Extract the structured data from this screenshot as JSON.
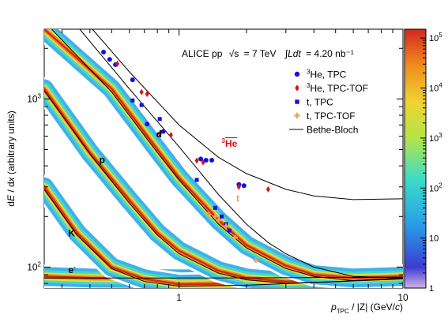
{
  "chart_data": {
    "type": "heatmap",
    "x_scale": "log",
    "y_scale": "log",
    "xlim": [
      0.25,
      10
    ],
    "ylim": [
      75,
      2600
    ],
    "zlim": [
      1,
      150000
    ],
    "title": "ALICE pp √s = 7 TeV ∫Ldt = 4.20 nb⁻¹",
    "title_parts": {
      "experiment": "ALICE pp",
      "energy_symbol": "√s",
      "energy_value": "= 7 TeV",
      "lumi_symbol": "∫Ldt",
      "lumi_value": "= 4.20 nb⁻¹"
    },
    "xlabel": "p_TPC / |Z| (GeV/c)",
    "xlabel_parts": {
      "p": "p",
      "sub": "TPC",
      "rest": " / |Z| (GeV/",
      "c": "c",
      "close": ")"
    },
    "ylabel": "dE / dx (arbitrary units)",
    "ylabel_parts": {
      "a": "d",
      "b": "E",
      "c": " / d",
      "d": "x",
      "e": " (arbitrary units)"
    },
    "x_ticks": [
      {
        "value": 1,
        "label": "1"
      },
      {
        "value": 10,
        "label": "10"
      }
    ],
    "y_ticks": [
      {
        "value": 100,
        "label": "10",
        "exp": "2"
      },
      {
        "value": 1000,
        "label": "10",
        "exp": "3"
      }
    ],
    "z_ticks": [
      {
        "value": 1,
        "label": "1"
      },
      {
        "value": 10,
        "label": "10"
      },
      {
        "value": 100,
        "label": "10",
        "exp": "2"
      },
      {
        "value": 1000,
        "label": "10",
        "exp": "3"
      },
      {
        "value": 10000,
        "label": "10",
        "exp": "4"
      },
      {
        "value": 100000,
        "label": "10",
        "exp": "5"
      }
    ],
    "legend_position": "upper-right",
    "legend": [
      {
        "sup": "3",
        "name": "He, TPC",
        "marker": "circle",
        "color": "#1010e0"
      },
      {
        "sup": "3",
        "name": "He, TPC-TOF",
        "marker": "diamond",
        "color": "#e01010"
      },
      {
        "sup": "",
        "name": "t, TPC",
        "marker": "square",
        "color": "#1010e0"
      },
      {
        "sup": "",
        "name": "t, TPC-TOF",
        "marker": "cross",
        "color": "#f0a050"
      },
      {
        "sup": "",
        "name": "Bethe-Bloch",
        "marker": "line",
        "color": "#000000"
      }
    ],
    "bands": [
      {
        "label": "e⁻",
        "label_at": [
          0.34,
          92
        ],
        "points": [
          [
            0.25,
            88
          ],
          [
            0.4,
            86
          ],
          [
            1,
            85
          ],
          [
            3,
            86
          ],
          [
            10,
            88
          ]
        ]
      },
      {
        "label": "K",
        "label_at": [
          0.32,
          150
        ],
        "points": [
          [
            0.25,
            300
          ],
          [
            0.35,
            160
          ],
          [
            0.5,
            100
          ],
          [
            0.7,
            85
          ],
          [
            1,
            79
          ],
          [
            2,
            80
          ],
          [
            10,
            88
          ]
        ]
      },
      {
        "label": "p",
        "label_at": [
          0.44,
          420
        ],
        "points": [
          [
            0.25,
            1150
          ],
          [
            0.4,
            480
          ],
          [
            0.6,
            250
          ],
          [
            0.8,
            160
          ],
          [
            1,
            125
          ],
          [
            1.5,
            95
          ],
          [
            2,
            86
          ],
          [
            3,
            82
          ],
          [
            5,
            84
          ],
          [
            10,
            88
          ]
        ]
      },
      {
        "label": "d",
        "label_at": [
          0.78,
          570
        ],
        "points": [
          [
            0.25,
            2600
          ],
          [
            0.5,
            1150
          ],
          [
            0.8,
            500
          ],
          [
            1,
            340
          ],
          [
            1.5,
            190
          ],
          [
            2,
            135
          ],
          [
            3,
            102
          ],
          [
            4,
            90
          ],
          [
            6,
            86
          ],
          [
            10,
            88
          ]
        ]
      }
    ],
    "bethe_bloch_curves": [
      {
        "particle": "e",
        "points": [
          [
            0.25,
            86
          ],
          [
            1,
            86
          ],
          [
            10,
            87
          ]
        ]
      },
      {
        "particle": "K",
        "points": [
          [
            0.25,
            290
          ],
          [
            0.35,
            155
          ],
          [
            0.5,
            98
          ],
          [
            0.7,
            82
          ],
          [
            1,
            77
          ],
          [
            2,
            78
          ],
          [
            10,
            85
          ]
        ]
      },
      {
        "particle": "p",
        "points": [
          [
            0.25,
            1120
          ],
          [
            0.4,
            470
          ],
          [
            0.6,
            240
          ],
          [
            0.8,
            155
          ],
          [
            1,
            120
          ],
          [
            1.5,
            92
          ],
          [
            2,
            84
          ],
          [
            3,
            80
          ],
          [
            5,
            82
          ],
          [
            10,
            86
          ]
        ]
      },
      {
        "particle": "d",
        "points": [
          [
            0.27,
            2600
          ],
          [
            0.5,
            1100
          ],
          [
            0.8,
            480
          ],
          [
            1,
            330
          ],
          [
            1.5,
            180
          ],
          [
            2,
            130
          ],
          [
            3,
            98
          ],
          [
            4,
            88
          ],
          [
            6,
            83
          ],
          [
            10,
            86
          ]
        ]
      },
      {
        "particle": "t",
        "points": [
          [
            0.36,
            2600
          ],
          [
            0.6,
            1150
          ],
          [
            1,
            520
          ],
          [
            1.5,
            270
          ],
          [
            2,
            180
          ],
          [
            2.5,
            140
          ],
          [
            3,
            120
          ],
          [
            4,
            100
          ],
          [
            6,
            88
          ],
          [
            10,
            86
          ]
        ]
      },
      {
        "particle": "3He",
        "points": [
          [
            0.41,
            2600
          ],
          [
            0.6,
            1450
          ],
          [
            1,
            700
          ],
          [
            1.5,
            450
          ],
          [
            2,
            360
          ],
          [
            3,
            290
          ],
          [
            4,
            265
          ],
          [
            6,
            252
          ],
          [
            10,
            255
          ]
        ]
      }
    ],
    "annotations": [
      {
        "text": "e",
        "sup": "-",
        "x": 0.32,
        "y": 92,
        "color": "#000000"
      },
      {
        "text": "K",
        "x": 0.32,
        "y": 152,
        "color": "#000000"
      },
      {
        "text": "p",
        "x": 0.44,
        "y": 415,
        "color": "#000000"
      },
      {
        "text": "d",
        "x": 0.79,
        "y": 590,
        "color": "#000000"
      },
      {
        "text": "t",
        "x": 1.8,
        "y": 245,
        "color": "#f0a050"
      },
      {
        "sup": "3",
        "text": "He",
        "x": 1.55,
        "y": 520,
        "color": "#e01010",
        "overline": true
      }
    ],
    "series": [
      {
        "name": "3He, TPC",
        "marker": "circle",
        "color": "#1010e0",
        "points": [
          [
            0.46,
            1900
          ],
          [
            0.49,
            1720
          ],
          [
            0.52,
            1600
          ],
          [
            0.62,
            1300
          ],
          [
            0.72,
            710
          ],
          [
            0.85,
            640
          ],
          [
            1.25,
            440
          ],
          [
            1.32,
            432
          ],
          [
            1.4,
            432
          ],
          [
            1.85,
            310
          ],
          [
            1.95,
            305
          ]
        ]
      },
      {
        "name": "3He, TPC-TOF",
        "marker": "diamond",
        "color": "#e01010",
        "points": [
          [
            0.53,
            1620
          ],
          [
            0.68,
            1100
          ],
          [
            0.72,
            1070
          ],
          [
            0.82,
            620
          ],
          [
            0.92,
            610
          ],
          [
            1.2,
            430
          ],
          [
            1.28,
            420
          ],
          [
            1.85,
            300
          ],
          [
            2.5,
            290
          ]
        ]
      },
      {
        "name": "t, TPC",
        "marker": "square",
        "color": "#1010e0",
        "points": [
          [
            0.62,
            980
          ],
          [
            0.68,
            920
          ],
          [
            0.82,
            760
          ],
          [
            1.2,
            330
          ],
          [
            1.45,
            225
          ],
          [
            1.55,
            200
          ],
          [
            1.62,
            180
          ],
          [
            1.68,
            165
          ]
        ]
      },
      {
        "name": "t, TPC-TOF",
        "marker": "cross",
        "color": "#f0a050",
        "points": [
          [
            1.35,
            205
          ],
          [
            1.45,
            200
          ],
          [
            1.5,
            190
          ],
          [
            1.62,
            175
          ],
          [
            1.78,
            150
          ],
          [
            2.2,
            110
          ]
        ]
      }
    ]
  }
}
